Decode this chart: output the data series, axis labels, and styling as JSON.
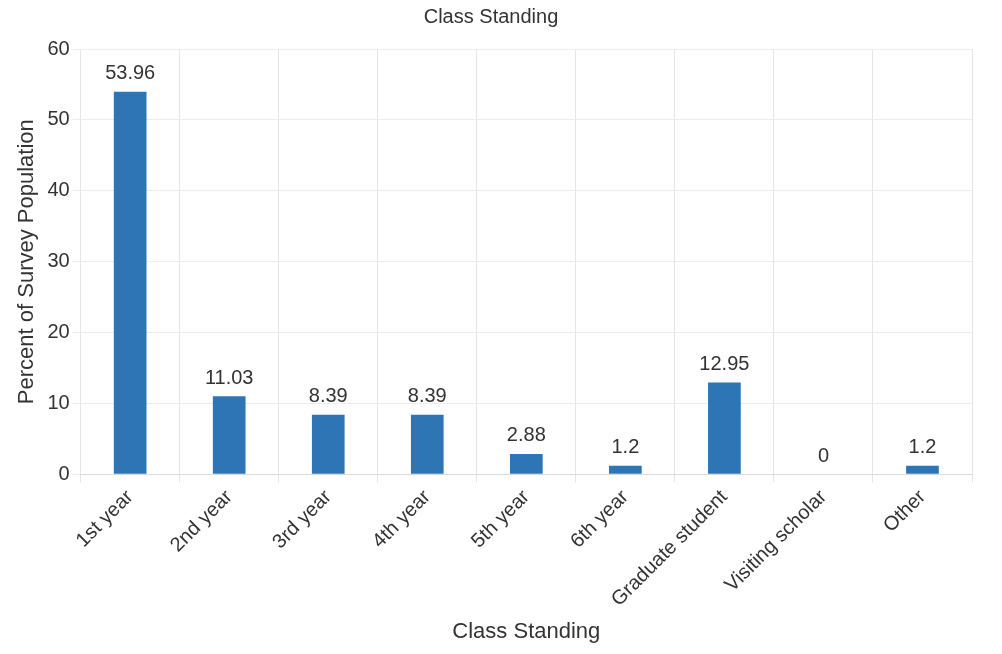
{
  "chart_data": {
    "type": "bar",
    "title": "Class Standing",
    "xlabel": "Class Standing",
    "ylabel": "Percent of Survey Population",
    "categories": [
      "1st year",
      "2nd year",
      "3rd year",
      "4th year",
      "5th year",
      "6th year",
      "Graduate student",
      "Visiting scholar",
      "Other"
    ],
    "values": [
      53.96,
      11.03,
      8.39,
      8.39,
      2.88,
      1.2,
      12.95,
      0,
      1.2
    ],
    "color": "#2e75b6",
    "ylim": [
      0,
      60
    ],
    "yticks": [
      0,
      10,
      20,
      30,
      40,
      50,
      60
    ],
    "grid": true,
    "legend": false,
    "data_labels": true
  }
}
